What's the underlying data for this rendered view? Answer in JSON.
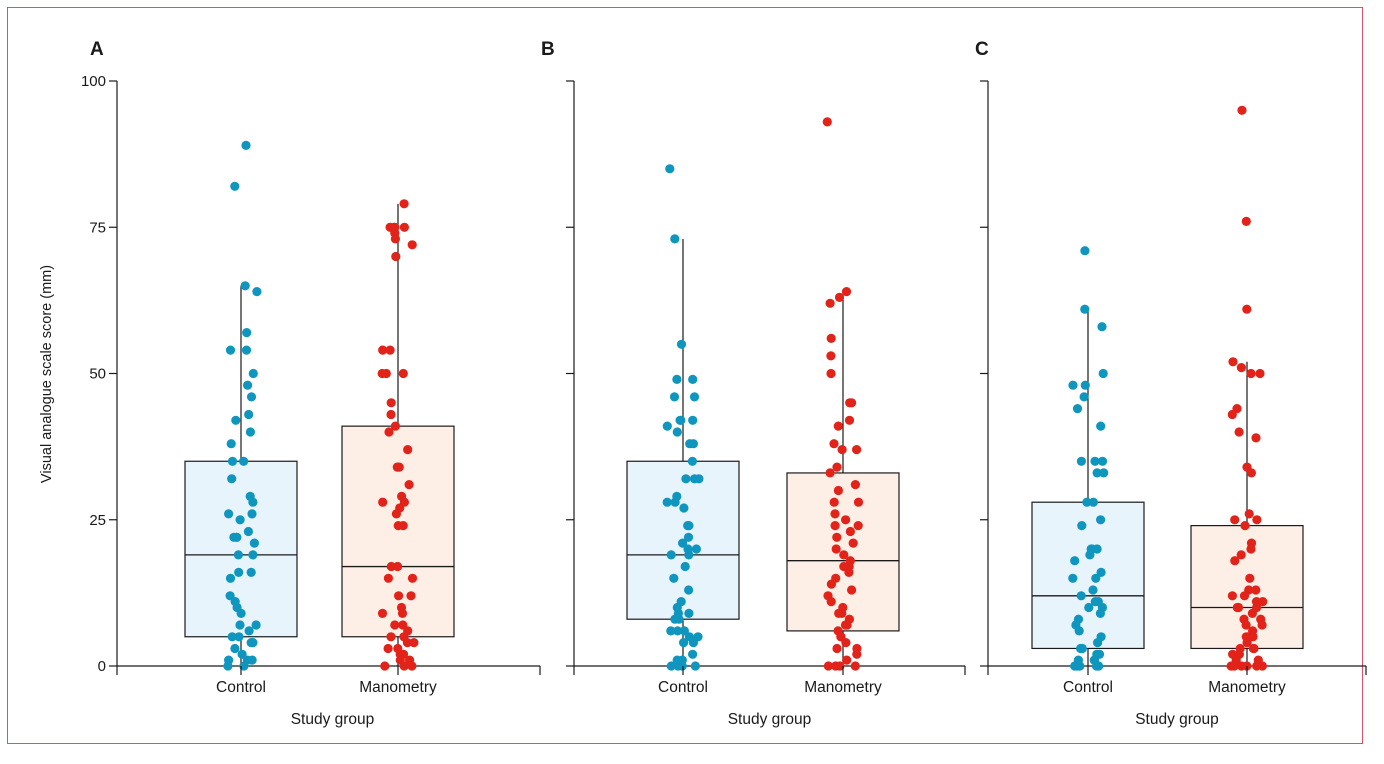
{
  "figure": {
    "ylabel": "Visual analogue scale score (mm)"
  },
  "chart_data": [
    {
      "type": "box",
      "panel": "A",
      "xlabel": "Study group",
      "ylabel": "Visual analogue scale score (mm)",
      "ylim": [
        0,
        100
      ],
      "yticks": [
        0,
        25,
        50,
        75,
        100
      ],
      "categories": [
        "Control",
        "Manometry"
      ],
      "box_fill": [
        "#e8f4fb",
        "#fdeee6"
      ],
      "point_color": [
        "#0f96bf",
        "#e2231a"
      ],
      "boxes": [
        {
          "group": "Control",
          "whisker_low": 0,
          "q1": 5,
          "median": 19,
          "q3": 35,
          "whisker_high": 65
        },
        {
          "group": "Manometry",
          "whisker_low": 0,
          "q1": 5,
          "median": 17,
          "q3": 41,
          "whisker_high": 79
        }
      ],
      "points": [
        [
          89,
          82,
          65,
          64,
          57,
          54,
          54,
          50,
          48,
          46,
          43,
          42,
          40,
          38,
          35,
          35,
          32,
          29,
          28,
          26,
          26,
          25,
          23,
          22,
          22,
          22,
          21,
          19,
          19,
          16,
          16,
          15,
          12,
          11,
          10,
          9,
          7,
          7,
          6,
          5,
          5,
          4,
          4,
          3,
          2,
          1,
          1,
          1,
          0,
          0
        ],
        [
          79,
          75,
          75,
          75,
          75,
          74,
          73,
          72,
          70,
          54,
          54,
          50,
          50,
          50,
          45,
          43,
          41,
          40,
          37,
          34,
          34,
          31,
          29,
          28,
          28,
          27,
          26,
          24,
          24,
          17,
          17,
          15,
          15,
          12,
          12,
          10,
          9,
          9,
          7,
          7,
          6,
          5,
          5,
          4,
          4,
          3,
          3,
          2,
          2,
          1,
          1,
          0,
          0,
          0
        ]
      ]
    },
    {
      "type": "box",
      "panel": "B",
      "xlabel": "Study group",
      "ylim": [
        0,
        100
      ],
      "yticks": [
        0,
        25,
        50,
        75,
        100
      ],
      "categories": [
        "Control",
        "Manometry"
      ],
      "box_fill": [
        "#e8f4fb",
        "#fdeee6"
      ],
      "point_color": [
        "#0f96bf",
        "#e2231a"
      ],
      "boxes": [
        {
          "group": "Control",
          "whisker_low": 0,
          "q1": 8,
          "median": 19,
          "q3": 35,
          "whisker_high": 73
        },
        {
          "group": "Manometry",
          "whisker_low": 0,
          "q1": 6,
          "median": 18,
          "q3": 33,
          "whisker_high": 64
        }
      ],
      "points": [
        [
          85,
          73,
          55,
          49,
          49,
          46,
          46,
          42,
          42,
          42,
          41,
          40,
          38,
          38,
          35,
          32,
          32,
          32,
          29,
          28,
          28,
          27,
          24,
          24,
          22,
          21,
          20,
          20,
          19,
          19,
          17,
          15,
          13,
          11,
          10,
          9,
          9,
          8,
          8,
          6,
          6,
          6,
          5,
          5,
          4,
          4,
          2,
          1,
          1,
          0,
          0,
          0,
          0
        ],
        [
          93,
          64,
          63,
          62,
          56,
          53,
          50,
          45,
          45,
          42,
          41,
          38,
          37,
          37,
          34,
          33,
          31,
          30,
          28,
          28,
          26,
          25,
          24,
          24,
          23,
          22,
          21,
          20,
          19,
          18,
          17,
          17,
          16,
          15,
          14,
          13,
          12,
          11,
          10,
          9,
          9,
          8,
          7,
          7,
          6,
          5,
          5,
          4,
          3,
          3,
          2,
          1,
          0,
          0,
          0,
          0
        ]
      ]
    },
    {
      "type": "box",
      "panel": "C",
      "xlabel": "Study group",
      "ylim": [
        0,
        100
      ],
      "yticks": [
        0,
        25,
        50,
        75,
        100
      ],
      "categories": [
        "Control",
        "Manometry"
      ],
      "box_fill": [
        "#e8f4fb",
        "#fdeee6"
      ],
      "point_color": [
        "#0f96bf",
        "#e2231a"
      ],
      "boxes": [
        {
          "group": "Control",
          "whisker_low": 0,
          "q1": 3,
          "median": 12,
          "q3": 28,
          "whisker_high": 61
        },
        {
          "group": "Manometry",
          "whisker_low": 0,
          "q1": 3,
          "median": 10,
          "q3": 24,
          "whisker_high": 52
        }
      ],
      "points": [
        [
          71,
          61,
          58,
          50,
          48,
          48,
          46,
          44,
          41,
          35,
          35,
          35,
          33,
          33,
          28,
          28,
          25,
          24,
          20,
          20,
          20,
          19,
          18,
          16,
          15,
          15,
          13,
          12,
          11,
          11,
          10,
          10,
          9,
          8,
          7,
          6,
          5,
          4,
          3,
          3,
          2,
          2,
          1,
          1,
          1,
          0,
          0,
          0,
          0,
          0,
          0,
          0
        ],
        [
          95,
          76,
          61,
          52,
          51,
          50,
          50,
          44,
          43,
          40,
          39,
          34,
          33,
          26,
          25,
          25,
          24,
          21,
          20,
          19,
          18,
          15,
          13,
          13,
          12,
          12,
          11,
          11,
          10,
          10,
          10,
          9,
          8,
          8,
          7,
          7,
          6,
          5,
          5,
          5,
          4,
          3,
          3,
          3,
          2,
          2,
          1,
          1,
          0,
          0,
          0,
          0,
          0,
          0
        ]
      ]
    }
  ]
}
